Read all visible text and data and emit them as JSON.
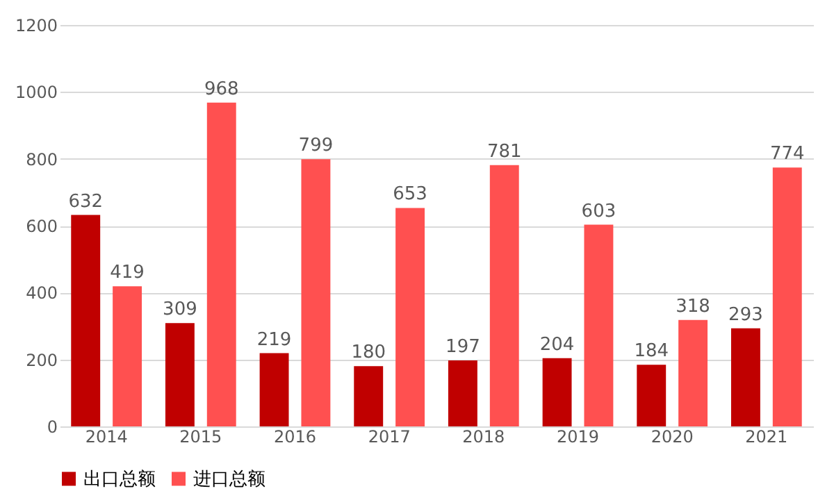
{
  "chart_data": {
    "type": "bar",
    "categories": [
      "2014",
      "2015",
      "2016",
      "2017",
      "2018",
      "2019",
      "2020",
      "2021"
    ],
    "series": [
      {
        "name": "出口总额",
        "color": "#c00000",
        "values": [
          632,
          309,
          219,
          180,
          197,
          204,
          184,
          293
        ]
      },
      {
        "name": "进口总额",
        "color": "#ff5050",
        "values": [
          419,
          968,
          799,
          653,
          781,
          603,
          318,
          774
        ]
      }
    ],
    "ylim": [
      0,
      1200
    ],
    "yticks": [
      0,
      200,
      400,
      600,
      800,
      1000,
      1200
    ],
    "grid": "y",
    "legend": "bottom",
    "data_labels": true
  }
}
